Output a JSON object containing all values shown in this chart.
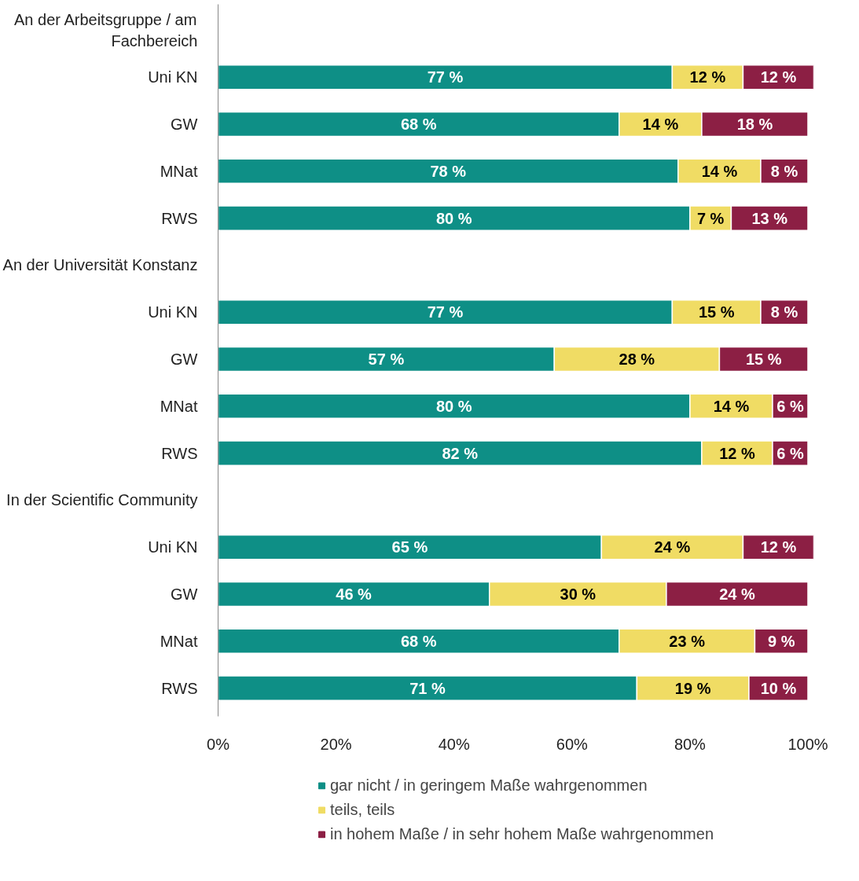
{
  "chart_data": {
    "type": "bar",
    "orientation": "horizontal",
    "stacked": true,
    "categories": [
      "An der Arbeitsgruppe / am Fachbereich",
      "Uni KN",
      "GW",
      "MNat",
      "RWS",
      "An der Universität Konstanz",
      "Uni KN",
      "GW",
      "MNat",
      "RWS",
      "In der Scientific Community",
      "Uni KN",
      "GW",
      "MNat",
      "RWS"
    ],
    "series": [
      {
        "name": "gar nicht / in geringem Maße wahrgenommen",
        "color": "#0e8f86",
        "values": [
          null,
          77,
          68,
          78,
          80,
          null,
          77,
          57,
          80,
          82,
          null,
          65,
          46,
          68,
          71
        ],
        "value_labels": [
          null,
          "77 %",
          "68 %",
          "78 %",
          "80 %",
          null,
          "77 %",
          "57 %",
          "80 %",
          "82 %",
          null,
          "65 %",
          "46 %",
          "68 %",
          "71 %"
        ]
      },
      {
        "name": "teils, teils",
        "color": "#f0dc64",
        "values": [
          null,
          12,
          14,
          14,
          7,
          null,
          15,
          28,
          14,
          12,
          null,
          24,
          30,
          23,
          19
        ],
        "value_labels": [
          null,
          "12 %",
          "14 %",
          "14 %",
          "7 %",
          null,
          "15 %",
          "28 %",
          "14 %",
          "12 %",
          null,
          "24 %",
          "30 %",
          "23 %",
          "19 %"
        ]
      },
      {
        "name": "in hohem Maße / in sehr hohem Maße wahrgenommen",
        "color": "#8c1f44",
        "values": [
          null,
          12,
          18,
          8,
          13,
          null,
          8,
          15,
          6,
          6,
          null,
          12,
          24,
          9,
          10
        ],
        "value_labels": [
          null,
          "12 %",
          "18 %",
          "8 %",
          "13 %",
          null,
          "8 %",
          "15 %",
          "6 %",
          "6 %",
          null,
          "12 %",
          "24 %",
          "9 %",
          "10 %"
        ]
      }
    ],
    "xlim": [
      0,
      101
    ],
    "xticks": [
      {
        "value": 0,
        "label": "0%"
      },
      {
        "value": 20,
        "label": "20%"
      },
      {
        "value": 40,
        "label": "40%"
      },
      {
        "value": 60,
        "label": "60%"
      },
      {
        "value": 80,
        "label": "80%"
      },
      {
        "value": 100,
        "label": "100%"
      }
    ],
    "grid": false,
    "legend": "bottom"
  }
}
